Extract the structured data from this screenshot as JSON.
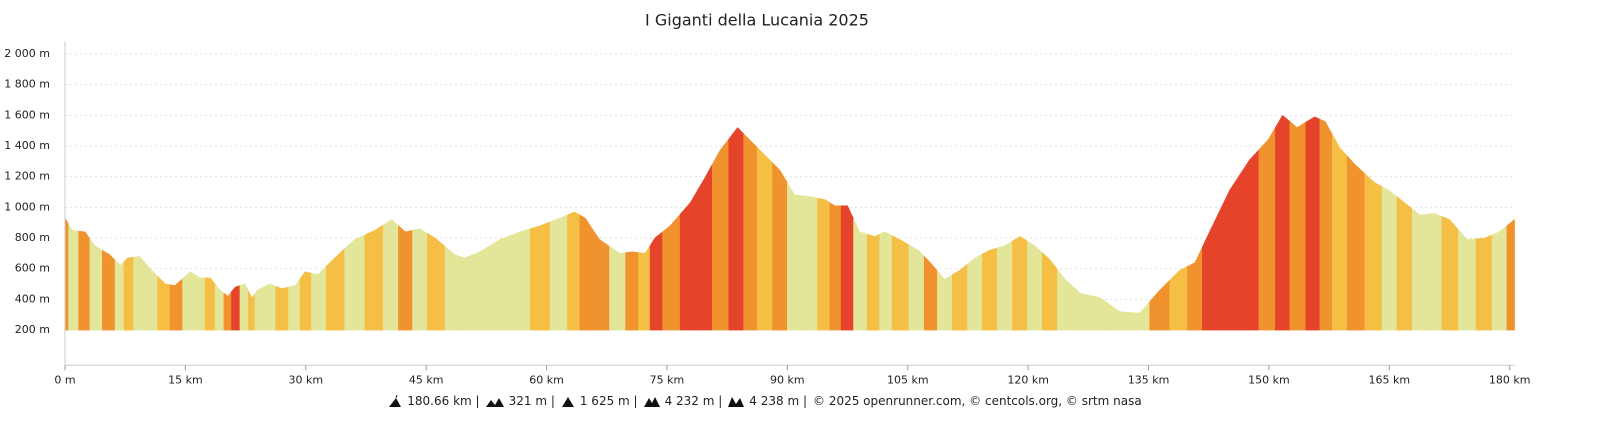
{
  "chart_data": {
    "type": "area",
    "title": "I Giganti della Lucania 2025",
    "x": [
      0,
      0.9,
      2.5,
      3.7,
      5.6,
      6.9,
      7.8,
      9.3,
      10.6,
      12.5,
      13.7,
      15.6,
      16.8,
      18.1,
      19.3,
      20.3,
      21.2,
      22.4,
      23.3,
      24,
      25.5,
      27,
      28.7,
      29.9,
      31.5,
      33.6,
      36.1,
      38.6,
      40.7,
      42.4,
      44.2,
      46.1,
      48.6,
      49.8,
      51.7,
      54.2,
      56.7,
      59.2,
      61.7,
      63.5,
      64.8,
      66.6,
      69.1,
      70.6,
      72.3,
      73.5,
      75.4,
      77.9,
      79.7,
      81.6,
      83.8,
      85.3,
      87.2,
      89.1,
      90.9,
      92.8,
      94.7,
      95.9,
      97.5,
      99,
      100.9,
      102.1,
      104,
      106.3,
      107.8,
      109.6,
      111.5,
      113.4,
      115.2,
      117.1,
      119,
      120.8,
      122.7,
      124.6,
      126.5,
      129,
      131.4,
      133.9,
      136.4,
      138.9,
      140.8,
      142.6,
      145.1,
      147.6,
      149.9,
      151.7,
      153.5,
      155.7,
      157,
      158.8,
      160.7,
      163.2,
      165,
      166.9,
      168.8,
      170.6,
      172.5,
      174.7,
      176.9,
      178.7,
      180.6
    ],
    "values": [
      930,
      850,
      840,
      750,
      690,
      620,
      670,
      680,
      600,
      500,
      490,
      580,
      540,
      540,
      460,
      420,
      480,
      500,
      410,
      460,
      500,
      470,
      490,
      580,
      560,
      670,
      790,
      850,
      920,
      840,
      860,
      800,
      690,
      670,
      710,
      790,
      840,
      880,
      930,
      970,
      930,
      790,
      700,
      710,
      700,
      800,
      880,
      1030,
      1190,
      1370,
      1520,
      1440,
      1340,
      1240,
      1080,
      1070,
      1050,
      1010,
      1010,
      840,
      810,
      840,
      790,
      720,
      640,
      530,
      590,
      670,
      720,
      750,
      810,
      750,
      660,
      530,
      440,
      410,
      320,
      310,
      460,
      590,
      640,
      840,
      1110,
      1310,
      1440,
      1600,
      1520,
      1590,
      1560,
      1390,
      1280,
      1160,
      1110,
      1030,
      950,
      960,
      920,
      790,
      800,
      840,
      920
    ],
    "colors": [
      "#f0922e",
      "#e3e598",
      "#f0922e",
      "#e3e598",
      "#f0922e",
      "#e3e598",
      "#f5bf45",
      "#e3e598",
      "#e3e598",
      "#f5bf45",
      "#f0922e",
      "#e3e598",
      "#e3e598",
      "#f5bf45",
      "#e3e598",
      "#f0922e",
      "#e6442a",
      "#e3e598",
      "#f5bf45",
      "#e3e598",
      "#e3e598",
      "#f5bf45",
      "#e3e598",
      "#f5bf45",
      "#e3e598",
      "#f5bf45",
      "#e3e598",
      "#f5bf45",
      "#e3e598",
      "#f0922e",
      "#e3e598",
      "#f5bf45",
      "#e3e598",
      "#e3e598",
      "#e3e598",
      "#e3e598",
      "#e3e598",
      "#f5bf45",
      "#e3e598",
      "#f5bf45",
      "#f0922e",
      "#f0922e",
      "#e3e598",
      "#f0922e",
      "#f5bf45",
      "#e6442a",
      "#f0922e",
      "#e6442a",
      "#e6442a",
      "#f0922e",
      "#e6442a",
      "#f0922e",
      "#f5bf45",
      "#f0922e",
      "#e3e598",
      "#e3e598",
      "#f5bf45",
      "#f0922e",
      "#e6442a",
      "#e3e598",
      "#f5bf45",
      "#e3e598",
      "#f5bf45",
      "#e3e598",
      "#f0922e",
      "#e3e598",
      "#f5bf45",
      "#e3e598",
      "#f5bf45",
      "#e3e598",
      "#f5bf45",
      "#e3e598",
      "#f5bf45",
      "#e3e598",
      "#e3e598",
      "#e3e598",
      "#e3e598",
      "#e3e598",
      "#f0922e",
      "#f5bf45",
      "#f0922e",
      "#e6442a",
      "#e6442a",
      "#e6442a",
      "#f0922e",
      "#e6442a",
      "#f0922e",
      "#e6442a",
      "#f0922e",
      "#f5bf45",
      "#f0922e",
      "#f5bf45",
      "#e3e598",
      "#f5bf45",
      "#e3e598",
      "#e3e598",
      "#f5bf45",
      "#e3e598",
      "#f5bf45",
      "#e3e598",
      "#f0922e"
    ],
    "xlim": [
      0,
      180.66
    ],
    "ylim": [
      -30,
      2080
    ],
    "xticks": [
      {
        "value": 0,
        "label": "0 m"
      },
      {
        "value": 15,
        "label": "15 km"
      },
      {
        "value": 30,
        "label": "30 km"
      },
      {
        "value": 45,
        "label": "45 km"
      },
      {
        "value": 60,
        "label": "60 km"
      },
      {
        "value": 75,
        "label": "75 km"
      },
      {
        "value": 90,
        "label": "90 km"
      },
      {
        "value": 105,
        "label": "105 km"
      },
      {
        "value": 120,
        "label": "120 km"
      },
      {
        "value": 135,
        "label": "135 km"
      },
      {
        "value": 150,
        "label": "150 km"
      },
      {
        "value": 165,
        "label": "165 km"
      },
      {
        "value": 180,
        "label": "180 km"
      }
    ],
    "yticks": [
      {
        "value": 200,
        "label": "200 m"
      },
      {
        "value": 400,
        "label": "400 m"
      },
      {
        "value": 600,
        "label": "600 m"
      },
      {
        "value": 800,
        "label": "800 m"
      },
      {
        "value": 1000,
        "label": "1 000 m"
      },
      {
        "value": 1200,
        "label": "1 200 m"
      },
      {
        "value": 1400,
        "label": "1 400 m"
      },
      {
        "value": 1600,
        "label": "1 600 m"
      },
      {
        "value": 1800,
        "label": "1 800 m"
      },
      {
        "value": 2000,
        "label": "2 000 m"
      }
    ],
    "grid": true,
    "stats": [
      "180.66 km |",
      "321 m |",
      "1 625 m |",
      "4 232 m |",
      "4 238 m |"
    ],
    "credits": "© 2025 openrunner.com, © centcols.org, © srtm nasa"
  }
}
